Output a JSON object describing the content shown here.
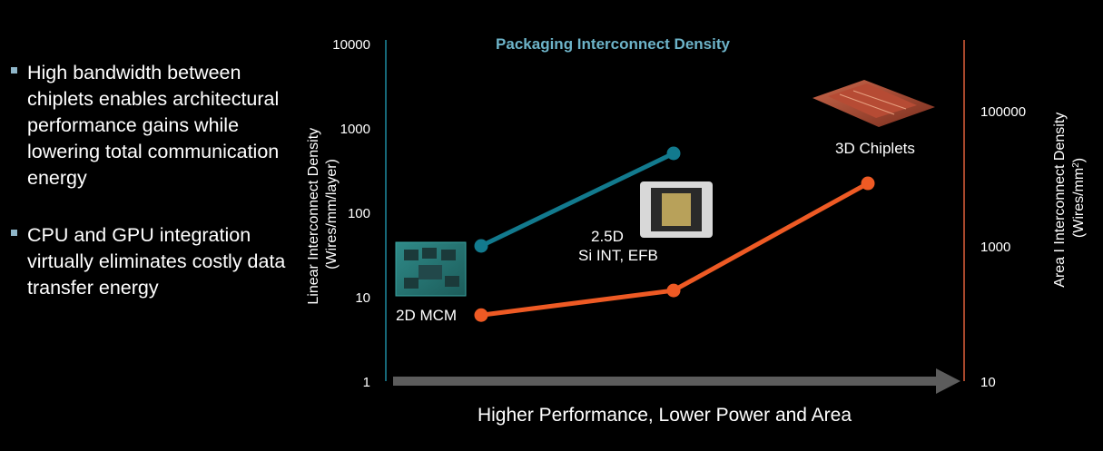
{
  "bullets": [
    "High bandwidth between chiplets enables architectural performance gains while lowering total communication energy",
    "CPU and GPU integration virtually eliminates costly data transfer energy"
  ],
  "chart_data": {
    "type": "line",
    "title": "Packaging Interconnect Density",
    "xlabel": "Higher Performance, Lower Power and Area",
    "ylabel_left": [
      "Linear Interconnect Density",
      "(Wires/mm/layer)"
    ],
    "ylabel_right": [
      "Area I Interconnect Density",
      "(Wires/mm",
      "2",
      ")"
    ],
    "yscale": "log",
    "ylim_left": [
      1,
      10000
    ],
    "ylim_right": [
      10,
      1000000
    ],
    "yticks_left": [
      "1",
      "10",
      "100",
      "1000",
      "10000"
    ],
    "yticks_right": [
      "10",
      "1000",
      "100000"
    ],
    "categories": [
      "2D MCM",
      "2.5D Si INT, EFB",
      "3D Chiplets"
    ],
    "series": [
      {
        "axis": "left",
        "color": "#127a8e",
        "points": [
          {
            "x": 0,
            "y": 40
          },
          {
            "x": 1,
            "y": 500
          }
        ]
      },
      {
        "axis": "right",
        "color": "#ee5a24",
        "points": [
          {
            "x": 0,
            "y": 95
          },
          {
            "x": 1,
            "y": 220
          },
          {
            "x": 2,
            "y": 8500
          }
        ]
      }
    ],
    "annotations": [
      "2D MCM",
      "2.5D",
      "Si INT, EFB",
      "3D Chiplets"
    ],
    "left_axis_color": "#1e8aa0",
    "right_axis_color": "#e0603a",
    "title_color": "#6db3c8"
  }
}
